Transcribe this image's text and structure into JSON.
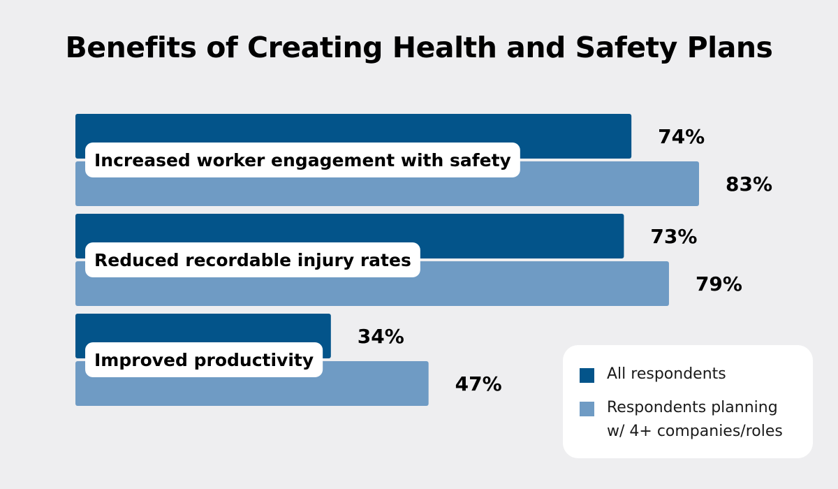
{
  "chart_data": {
    "type": "bar",
    "orientation": "horizontal",
    "title": "Benefits of Creating Health and Safety Plans",
    "xlabel": "",
    "ylabel": "",
    "xlim": [
      0,
      100
    ],
    "grid": false,
    "legend_position": "bottom-right",
    "categories": [
      "Increased worker engagement with safety",
      "Reduced recordable injury rates",
      "Improved productivity"
    ],
    "series": [
      {
        "name": "All respondents",
        "color": "#03548a",
        "values": [
          74,
          73,
          34
        ],
        "labels": [
          "74%",
          "73%",
          "34%"
        ]
      },
      {
        "name": "Respondents planning\nw/ 4+ companies/roles",
        "color": "#6f9bc4",
        "values": [
          83,
          79,
          47
        ],
        "labels": [
          "83%",
          "79%",
          "47%"
        ]
      }
    ]
  }
}
